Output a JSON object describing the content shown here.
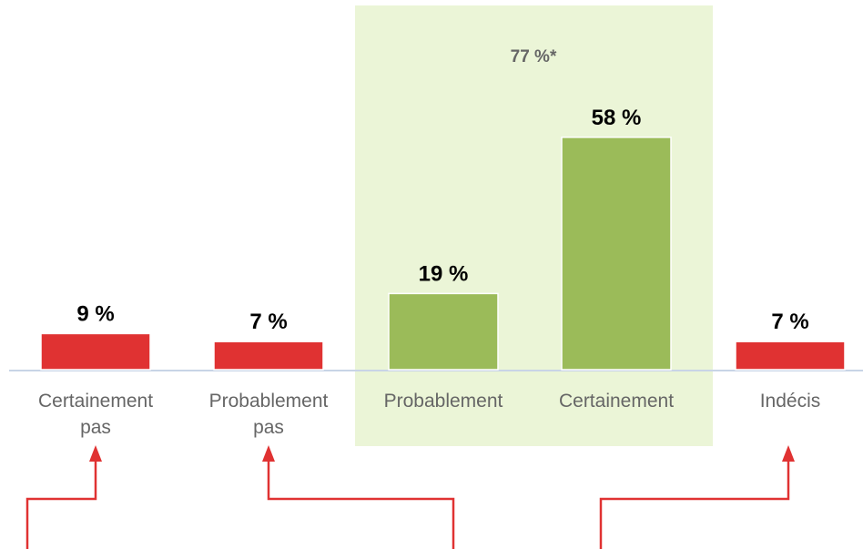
{
  "chart_data": {
    "type": "bar",
    "categories": [
      "Certainement pas",
      "Probablement pas",
      "Probablement",
      "Certainement",
      "Indécis"
    ],
    "values": [
      9,
      7,
      19,
      58,
      7
    ],
    "value_labels": [
      "9 %",
      "7 %",
      "19 %",
      "58 %",
      "7 %"
    ],
    "colors": [
      "#e03232",
      "#e03232",
      "#9bbb59",
      "#9bbb59",
      "#e03232"
    ],
    "annotation": "77 %*"
  }
}
